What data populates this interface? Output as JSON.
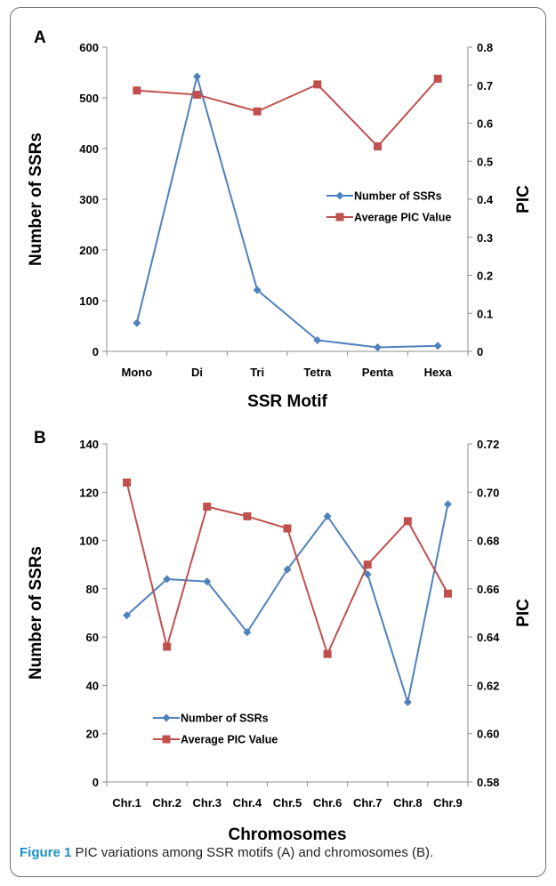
{
  "figure": {
    "caption_label": "Figure 1",
    "caption_text": "PIC variations among SSR motifs (A) and chromosomes (B)."
  },
  "colors": {
    "blue": "#4f81bd",
    "red": "#c0504d",
    "axis": "#8c8c8c"
  },
  "chart_data": [
    {
      "panel": "A",
      "type": "line",
      "categories": [
        "Mono",
        "Di",
        "Tri",
        "Tetra",
        "Penta",
        "Hexa"
      ],
      "xlabel": "SSR  Motif",
      "ylabel": "Number of SSRs",
      "y2label": "PIC",
      "ylim": [
        0,
        600
      ],
      "y2lim": [
        0,
        0.8
      ],
      "yticks": [
        "0",
        "100",
        "200",
        "300",
        "400",
        "500",
        "600"
      ],
      "y2ticks": [
        "0",
        "0.1",
        "0.2",
        "0.3",
        "0.4",
        "0.5",
        "0.6",
        "0.7",
        "0.8"
      ],
      "legend_position": "center-right",
      "series": [
        {
          "name": "Number of SSRs",
          "axis": "left",
          "marker": "diamond",
          "color": "#4f81bd",
          "values": [
            56,
            542,
            121,
            22,
            8,
            11
          ]
        },
        {
          "name": "Average PIC Value",
          "axis": "right",
          "marker": "square",
          "color": "#c0504d",
          "values": [
            0.686,
            0.675,
            0.631,
            0.702,
            0.539,
            0.717
          ]
        }
      ]
    },
    {
      "panel": "B",
      "type": "line",
      "categories": [
        "Chr.1",
        "Chr.2",
        "Chr.3",
        "Chr.4",
        "Chr.5",
        "Chr.6",
        "Chr.7",
        "Chr.8",
        "Chr.9"
      ],
      "xlabel": "Chromosomes",
      "ylabel": "Number of SSRs",
      "y2label": "PIC",
      "ylim": [
        0,
        140
      ],
      "y2lim": [
        0.58,
        0.72
      ],
      "yticks": [
        "0",
        "20",
        "40",
        "60",
        "80",
        "100",
        "120",
        "140"
      ],
      "y2ticks": [
        "0.58",
        "0.60",
        "0.62",
        "0.64",
        "0.66",
        "0.68",
        "0.70",
        "0.72"
      ],
      "legend_position": "bottom-left",
      "series": [
        {
          "name": "Number of SSRs",
          "axis": "left",
          "marker": "diamond",
          "color": "#4f81bd",
          "values": [
            69,
            84,
            83,
            62,
            88,
            110,
            86,
            33,
            115
          ]
        },
        {
          "name": "Average PIC Value",
          "axis": "right",
          "marker": "square",
          "color": "#c0504d",
          "values": [
            0.704,
            0.636,
            0.694,
            0.69,
            0.685,
            0.633,
            0.67,
            0.688,
            0.658
          ]
        }
      ]
    }
  ]
}
